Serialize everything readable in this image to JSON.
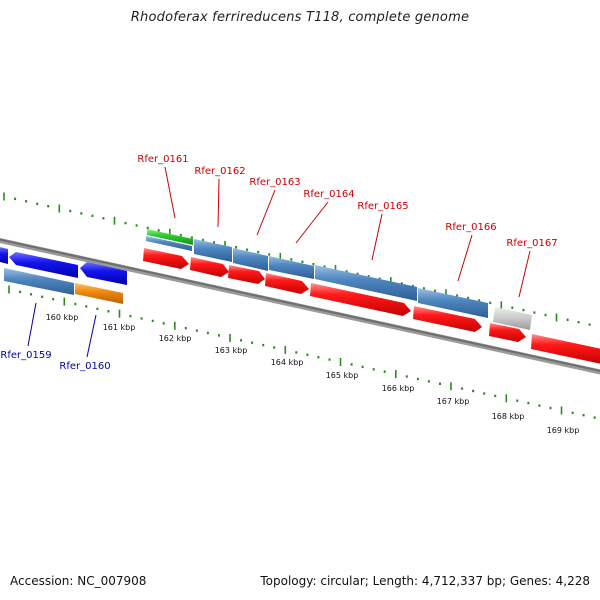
{
  "title": "Rhodoferax ferrireducens T118, complete genome",
  "footer": {
    "accession": "Accession: NC_007908",
    "summary": "Topology: circular; Length: 4,712,337 bp; Genes: 4,228"
  },
  "colors": {
    "backbone": "#7a7a7a",
    "tick": "#2b8a1e",
    "gene_label_top": "#cc0000",
    "gene_label_bottom": "#0000aa",
    "cds": "#ee1111",
    "gene_steelblue": "#4f87c0",
    "gene_blue": "#1010ee",
    "gene_orange": "#f08a10",
    "gene_green": "#2ecc2e",
    "gene_gray": "#c8c8c8"
  },
  "scale_labels": [
    "160 kbp",
    "161 kbp",
    "162 kbp",
    "163 kbp",
    "164 kbp",
    "165 kbp",
    "166 kbp",
    "167 kbp",
    "168 kbp",
    "169 kbp"
  ],
  "gene_labels_top": [
    "Rfer_0161",
    "Rfer_0162",
    "Rfer_0163",
    "Rfer_0164",
    "Rfer_0165",
    "Rfer_0166",
    "Rfer_0167"
  ],
  "gene_labels_bottom": [
    "Rfer_0159",
    "Rfer_0160"
  ]
}
